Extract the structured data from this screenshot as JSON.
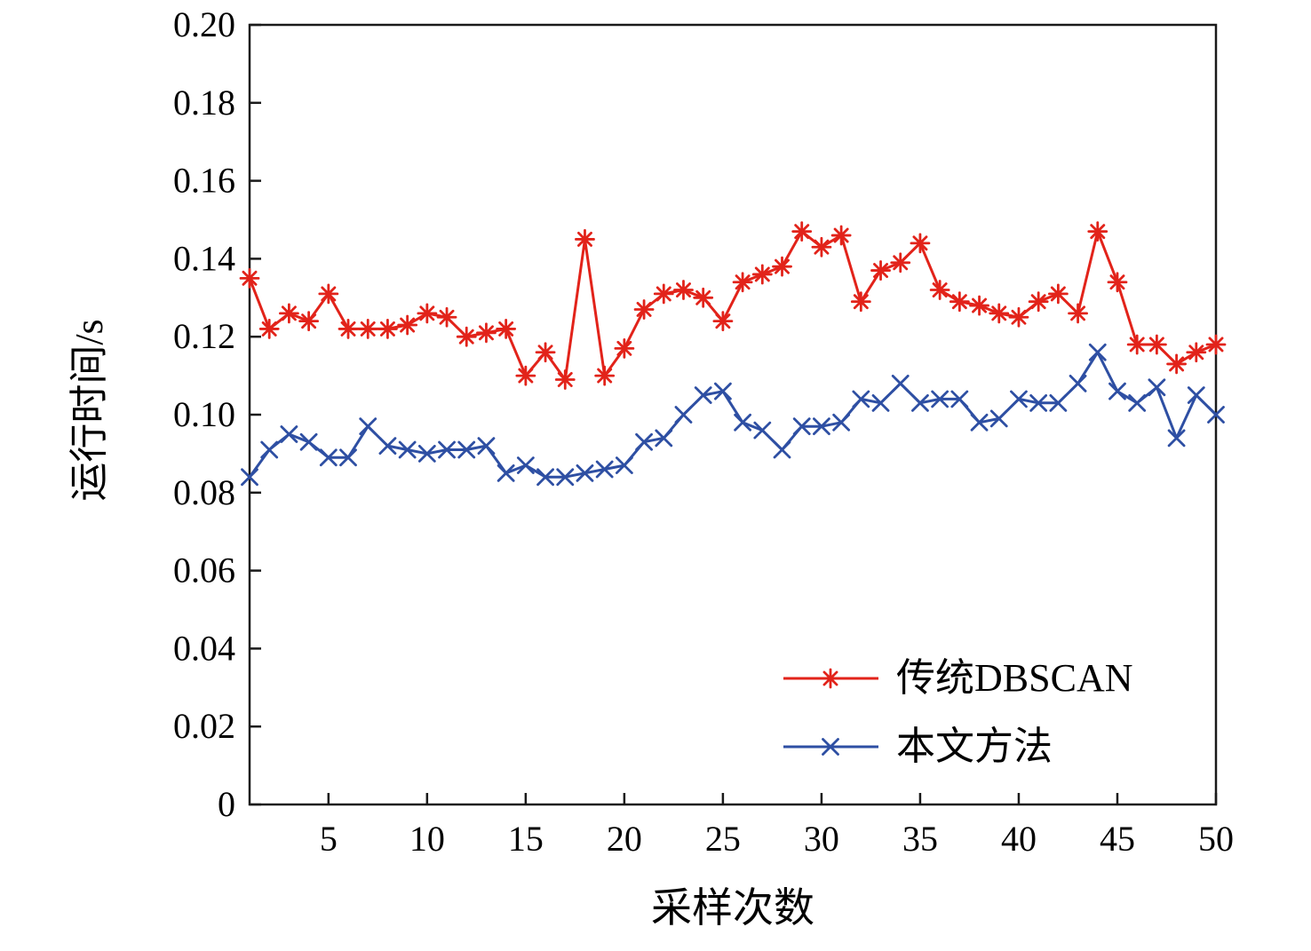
{
  "figure": {
    "background": "#ffffff",
    "axis_color": "#1a1a1a"
  },
  "chart_data": {
    "type": "line",
    "title": "",
    "xlabel": "采样次数",
    "ylabel": "运行时间/s",
    "xlim": [
      1,
      50
    ],
    "ylim": [
      0,
      0.2
    ],
    "xticks": [
      5,
      10,
      15,
      20,
      25,
      30,
      35,
      40,
      45,
      50
    ],
    "yticks": [
      0,
      0.02,
      0.04,
      0.06,
      0.08,
      0.1,
      0.12,
      0.14,
      0.16,
      0.18,
      0.2
    ],
    "grid": false,
    "legend_position": "inside-bottom-right",
    "x": [
      1,
      2,
      3,
      4,
      5,
      6,
      7,
      8,
      9,
      10,
      11,
      12,
      13,
      14,
      15,
      16,
      17,
      18,
      19,
      20,
      21,
      22,
      23,
      24,
      25,
      26,
      27,
      28,
      29,
      30,
      31,
      32,
      33,
      34,
      35,
      36,
      37,
      38,
      39,
      40,
      41,
      42,
      43,
      44,
      45,
      46,
      47,
      48,
      49,
      50
    ],
    "series": [
      {
        "name": "传统DBSCAN",
        "color": "#e2231a",
        "marker": "asterisk",
        "values": [
          0.135,
          0.122,
          0.126,
          0.124,
          0.131,
          0.122,
          0.122,
          0.122,
          0.123,
          0.126,
          0.125,
          0.12,
          0.121,
          0.122,
          0.11,
          0.116,
          0.109,
          0.145,
          0.11,
          0.117,
          0.127,
          0.131,
          0.132,
          0.13,
          0.124,
          0.134,
          0.136,
          0.138,
          0.147,
          0.143,
          0.146,
          0.129,
          0.137,
          0.139,
          0.144,
          0.132,
          0.129,
          0.128,
          0.126,
          0.125,
          0.129,
          0.131,
          0.126,
          0.147,
          0.134,
          0.118,
          0.118,
          0.113,
          0.116,
          0.118
        ]
      },
      {
        "name": "本文方法",
        "color": "#2e4fa3",
        "marker": "x",
        "values": [
          0.084,
          0.091,
          0.095,
          0.093,
          0.089,
          0.089,
          0.097,
          0.092,
          0.091,
          0.09,
          0.091,
          0.091,
          0.092,
          0.085,
          0.087,
          0.084,
          0.084,
          0.085,
          0.086,
          0.087,
          0.093,
          0.094,
          0.1,
          0.105,
          0.106,
          0.098,
          0.096,
          0.091,
          0.097,
          0.097,
          0.098,
          0.104,
          0.103,
          0.108,
          0.103,
          0.104,
          0.104,
          0.098,
          0.099,
          0.104,
          0.103,
          0.103,
          0.108,
          0.116,
          0.106,
          0.103,
          0.107,
          0.094,
          0.105,
          0.1
        ]
      }
    ]
  }
}
